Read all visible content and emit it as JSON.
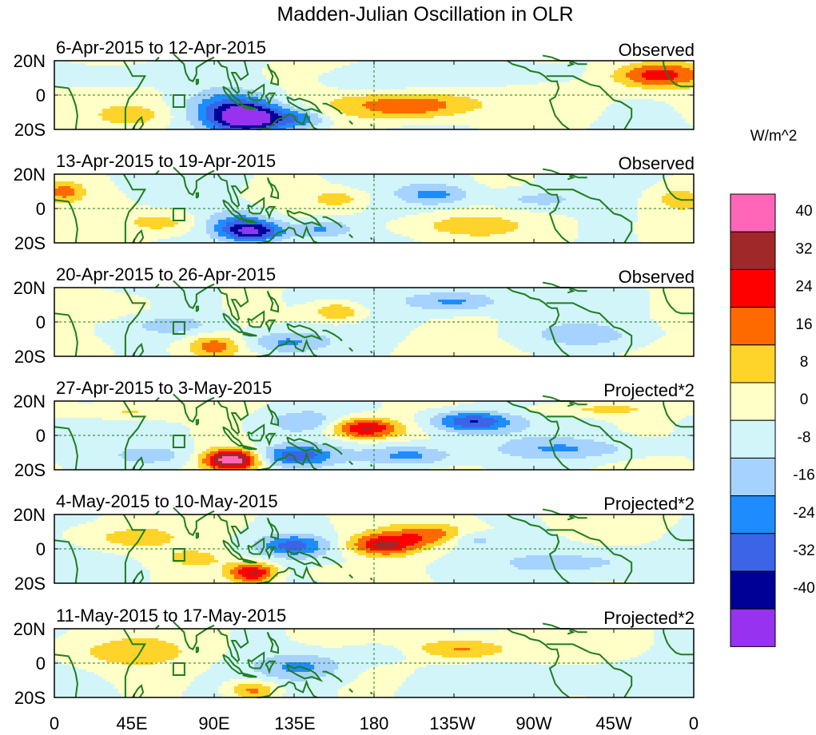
{
  "chart_data": {
    "type": "heatmap",
    "title": "Madden-Julian Oscillation in OLR",
    "units": "W/m^2",
    "lat_range": [
      -20,
      20
    ],
    "lon_range": [
      0,
      360
    ],
    "y_ticks": [
      "20N",
      "0",
      "20S"
    ],
    "x_ticks": [
      "0",
      "45E",
      "90E",
      "135E",
      "180",
      "135W",
      "90W",
      "45W",
      "0"
    ],
    "colorbar": {
      "labels": [
        "40",
        "32",
        "24",
        "16",
        "8",
        "0",
        "-8",
        "-16",
        "-24",
        "-32",
        "-40"
      ],
      "colors": [
        "#ff66b8",
        "#a02828",
        "#ff0000",
        "#ff6a00",
        "#ffd42a",
        "#ffffc8",
        "#d2f5fa",
        "#a5d2ff",
        "#1e8cff",
        "#3c64e6",
        "#000096",
        "#9632f0"
      ]
    },
    "panels": [
      {
        "period": "6-Apr-2015 to 12-Apr-2015",
        "label": "Observed",
        "features": [
          {
            "lon": 110,
            "lat": -14,
            "amp": -44,
            "wlon": 22,
            "wlat": 8
          },
          {
            "lon": 100,
            "lat": -6,
            "amp": -22,
            "wlon": 25,
            "wlat": 10
          },
          {
            "lon": 140,
            "lat": -14,
            "amp": -18,
            "wlon": 14,
            "wlat": 6
          },
          {
            "lon": 200,
            "lat": -6,
            "amp": 24,
            "wlon": 35,
            "wlat": 8
          },
          {
            "lon": 175,
            "lat": 8,
            "amp": -10,
            "wlon": 30,
            "wlat": 8
          },
          {
            "lon": 255,
            "lat": 12,
            "amp": -10,
            "wlon": 40,
            "wlat": 7
          },
          {
            "lon": 340,
            "lat": 12,
            "amp": 30,
            "wlon": 25,
            "wlat": 8
          },
          {
            "lon": 45,
            "lat": -12,
            "amp": 10,
            "wlon": 20,
            "wlat": 6
          },
          {
            "lon": 30,
            "lat": 10,
            "amp": -8,
            "wlon": 30,
            "wlat": 8
          }
        ]
      },
      {
        "period": "13-Apr-2015 to 19-Apr-2015",
        "label": "Observed",
        "features": [
          {
            "lon": 112,
            "lat": -14,
            "amp": -36,
            "wlon": 18,
            "wlat": 6
          },
          {
            "lon": 105,
            "lat": -8,
            "amp": -20,
            "wlon": 20,
            "wlat": 8
          },
          {
            "lon": 150,
            "lat": -12,
            "amp": -20,
            "wlon": 18,
            "wlat": 6
          },
          {
            "lon": 5,
            "lat": 10,
            "amp": 18,
            "wlon": 12,
            "wlat": 6
          },
          {
            "lon": 60,
            "lat": -8,
            "amp": 12,
            "wlon": 20,
            "wlat": 6
          },
          {
            "lon": 160,
            "lat": 6,
            "amp": 12,
            "wlon": 15,
            "wlat": 5
          },
          {
            "lon": 215,
            "lat": 8,
            "amp": -18,
            "wlon": 20,
            "wlat": 6
          },
          {
            "lon": 270,
            "lat": 5,
            "amp": -12,
            "wlon": 25,
            "wlat": 6
          },
          {
            "lon": 230,
            "lat": -10,
            "amp": 10,
            "wlon": 30,
            "wlat": 6
          },
          {
            "lon": 350,
            "lat": 6,
            "amp": 10,
            "wlon": 15,
            "wlat": 8
          }
        ]
      },
      {
        "period": "20-Apr-2015 to 26-Apr-2015",
        "label": "Observed",
        "features": [
          {
            "lon": 90,
            "lat": -14,
            "amp": 20,
            "wlon": 15,
            "wlat": 6
          },
          {
            "lon": 160,
            "lat": 6,
            "amp": 18,
            "wlon": 15,
            "wlat": 6
          },
          {
            "lon": 130,
            "lat": -12,
            "amp": -20,
            "wlon": 25,
            "wlat": 7
          },
          {
            "lon": 225,
            "lat": 12,
            "amp": -18,
            "wlon": 25,
            "wlat": 6
          },
          {
            "lon": 30,
            "lat": 10,
            "amp": 10,
            "wlon": 30,
            "wlat": 8
          },
          {
            "lon": 70,
            "lat": -2,
            "amp": -10,
            "wlon": 25,
            "wlat": 6
          },
          {
            "lon": 300,
            "lat": -8,
            "amp": -10,
            "wlon": 40,
            "wlat": 8
          }
        ]
      },
      {
        "period": "27-Apr-2015 to 3-May-2015",
        "label": "Projected*2",
        "features": [
          {
            "lon": 100,
            "lat": -14,
            "amp": 48,
            "wlon": 16,
            "wlat": 6
          },
          {
            "lon": 175,
            "lat": 4,
            "amp": 36,
            "wlon": 20,
            "wlat": 6
          },
          {
            "lon": 235,
            "lat": 8,
            "amp": -32,
            "wlon": 22,
            "wlat": 6
          },
          {
            "lon": 135,
            "lat": -12,
            "amp": -28,
            "wlon": 22,
            "wlat": 6
          },
          {
            "lon": 200,
            "lat": -12,
            "amp": -20,
            "wlon": 25,
            "wlat": 6
          },
          {
            "lon": 140,
            "lat": 8,
            "amp": -12,
            "wlon": 20,
            "wlat": 6
          },
          {
            "lon": 40,
            "lat": 14,
            "amp": 12,
            "wlon": 30,
            "wlat": 5
          },
          {
            "lon": 60,
            "lat": -12,
            "amp": -10,
            "wlon": 25,
            "wlat": 6
          },
          {
            "lon": 300,
            "lat": 15,
            "amp": 10,
            "wlon": 40,
            "wlat": 4
          },
          {
            "lon": 290,
            "lat": -8,
            "amp": -14,
            "wlon": 40,
            "wlat": 6
          }
        ]
      },
      {
        "period": "4-May-2015 to 10-May-2015",
        "label": "Projected*2",
        "features": [
          {
            "lon": 112,
            "lat": -14,
            "amp": 36,
            "wlon": 14,
            "wlat": 6
          },
          {
            "lon": 185,
            "lat": 2,
            "amp": 30,
            "wlon": 20,
            "wlat": 6
          },
          {
            "lon": 215,
            "lat": 8,
            "amp": 20,
            "wlon": 30,
            "wlat": 6
          },
          {
            "lon": 135,
            "lat": 2,
            "amp": -24,
            "wlon": 20,
            "wlat": 6
          },
          {
            "lon": 235,
            "lat": 6,
            "amp": -16,
            "wlon": 14,
            "wlat": 5
          },
          {
            "lon": 40,
            "lat": 6,
            "amp": 12,
            "wlon": 30,
            "wlat": 8
          },
          {
            "lon": 80,
            "lat": -6,
            "amp": 10,
            "wlon": 20,
            "wlat": 6
          },
          {
            "lon": 155,
            "lat": -14,
            "amp": 10,
            "wlon": 15,
            "wlat": 5
          },
          {
            "lon": 300,
            "lat": -8,
            "amp": -10,
            "wlon": 40,
            "wlat": 8
          }
        ]
      },
      {
        "period": "11-May-2015 to 17-May-2015",
        "label": "Projected*2",
        "features": [
          {
            "lon": 112,
            "lat": -16,
            "amp": 22,
            "wlon": 14,
            "wlat": 6
          },
          {
            "lon": 140,
            "lat": -2,
            "amp": -18,
            "wlon": 25,
            "wlat": 8
          },
          {
            "lon": 230,
            "lat": 8,
            "amp": 18,
            "wlon": 25,
            "wlat": 6
          },
          {
            "lon": 40,
            "lat": 6,
            "amp": 10,
            "wlon": 35,
            "wlat": 8
          },
          {
            "lon": 180,
            "lat": 6,
            "amp": -10,
            "wlon": 20,
            "wlat": 6
          },
          {
            "lon": 300,
            "lat": -8,
            "amp": -8,
            "wlon": 40,
            "wlat": 8
          }
        ]
      }
    ]
  }
}
